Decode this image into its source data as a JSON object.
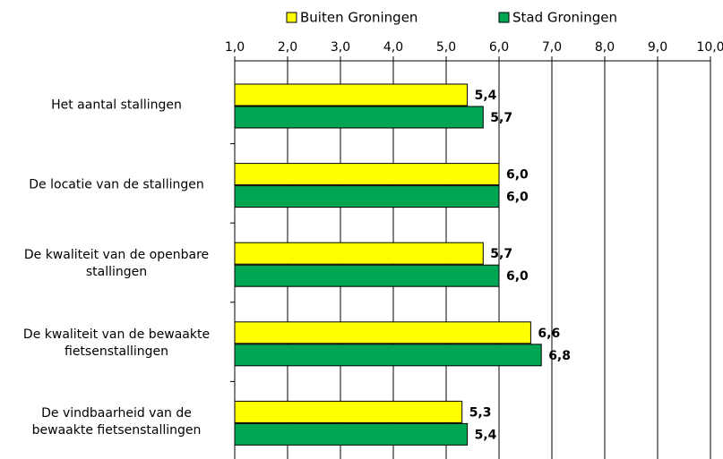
{
  "chart_data": {
    "type": "hbar",
    "categories": [
      "Het aantal stallingen",
      "De locatie van de stallingen",
      "De kwaliteit van de openbare stallingen",
      "De kwaliteit van de bewaakte fietsenstallingen",
      "De vindbaarheid van de bewaakte fietsenstallingen"
    ],
    "series": [
      {
        "name": "Buiten Groningen",
        "color": "#ffff00",
        "values": [
          5.4,
          6.0,
          5.7,
          6.6,
          5.3
        ],
        "value_labels": [
          "5,4",
          "6,0",
          "5,7",
          "6,6",
          "5,3"
        ]
      },
      {
        "name": "Stad Groningen",
        "color": "#00a651",
        "values": [
          5.7,
          6.0,
          6.0,
          6.8,
          5.4
        ],
        "value_labels": [
          "5,7",
          "6,0",
          "6,0",
          "6,8",
          "5,4"
        ]
      }
    ],
    "xlim": [
      1,
      10
    ],
    "xticks": [
      {
        "value": 1,
        "label": "1,0"
      },
      {
        "value": 2,
        "label": "2,0"
      },
      {
        "value": 3,
        "label": "3,0"
      },
      {
        "value": 4,
        "label": "4,0"
      },
      {
        "value": 5,
        "label": "5,0"
      },
      {
        "value": 6,
        "label": "6,0"
      },
      {
        "value": 7,
        "label": "7,0"
      },
      {
        "value": 8,
        "label": "8,0"
      },
      {
        "value": 9,
        "label": "9,0"
      },
      {
        "value": 10,
        "label": "10,0"
      }
    ],
    "grid": true,
    "legend": "top"
  }
}
